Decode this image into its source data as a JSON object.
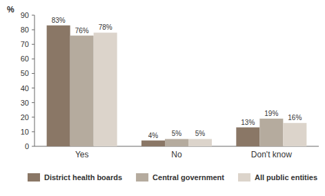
{
  "chart_data": {
    "type": "bar",
    "ylabel": "%",
    "categories": [
      "Yes",
      "No",
      "Don't know"
    ],
    "series": [
      {
        "name": "District health boards",
        "color": "#8a7766",
        "values": [
          83,
          4,
          13
        ],
        "value_labels": [
          "83%",
          "4%",
          "13%"
        ]
      },
      {
        "name": "Central government",
        "color": "#b5ab9e",
        "values": [
          76,
          5,
          19
        ],
        "value_labels": [
          "76%",
          "5%",
          "19%"
        ]
      },
      {
        "name": "All public entities",
        "color": "#dcd4cb",
        "values": [
          78,
          5,
          16
        ],
        "value_labels": [
          "78%",
          "5%",
          "16%"
        ]
      }
    ],
    "ylim": [
      0,
      90
    ],
    "yticks": [
      0,
      10,
      20,
      30,
      40,
      50,
      60,
      70,
      80,
      90
    ],
    "grid": false,
    "data_labels": true,
    "legend": "bottom"
  }
}
